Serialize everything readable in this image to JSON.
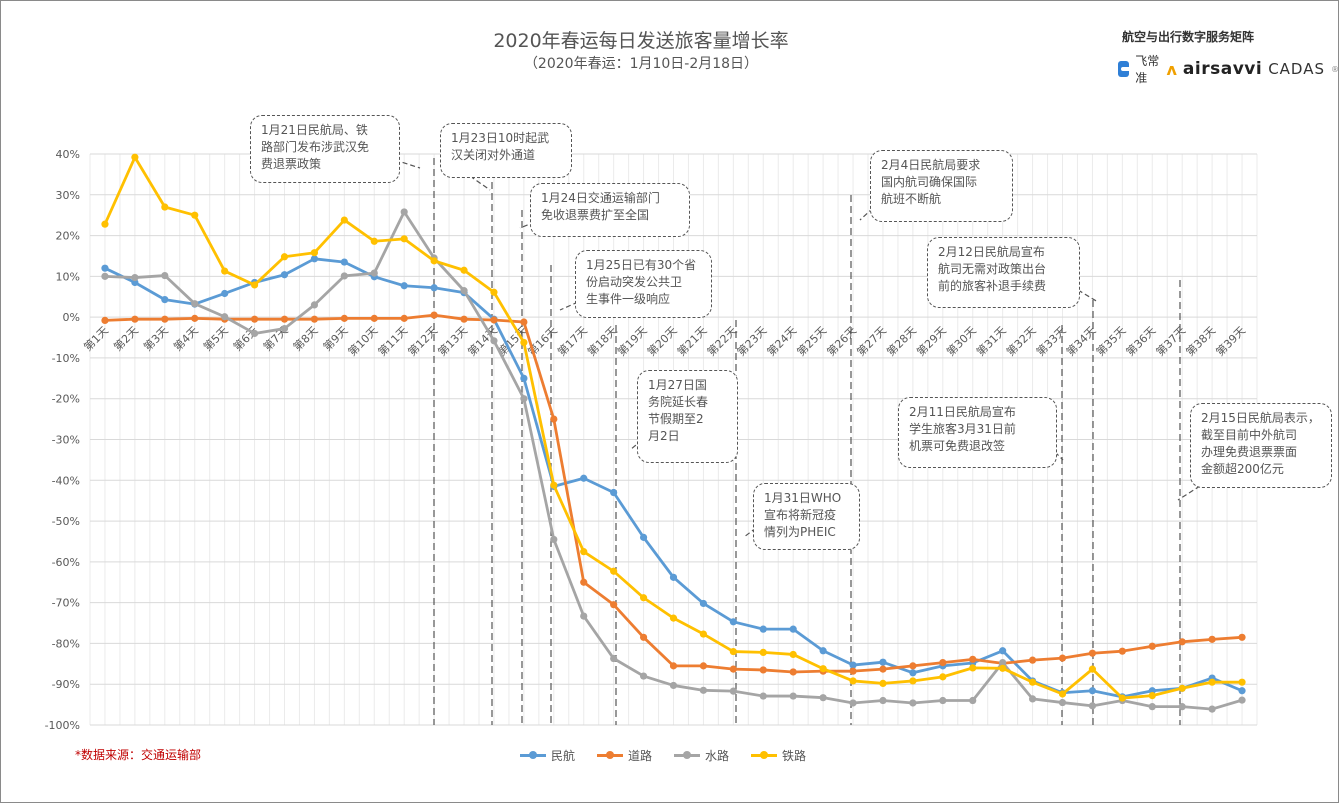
{
  "header": {
    "title": "2020年春运每日发送旅客量增长率",
    "subtitle": "（2020年春运：1月10日-2月18日）"
  },
  "brand": {
    "title": "航空与出行数字服务矩阵",
    "logos": [
      "飞常准",
      "airsavvi",
      "CADAS"
    ],
    "registered": "®"
  },
  "source": "*数据来源：交通运输部",
  "annotations": [
    {
      "lines": [
        "1月21日民航局、铁",
        "路部门发布涉武汉免",
        "费退票政策"
      ]
    },
    {
      "lines": [
        "1月23日10时起武",
        "汉关闭对外通道"
      ]
    },
    {
      "lines": [
        "1月24日交通运输部门",
        "免收退票费扩至全国"
      ]
    },
    {
      "lines": [
        "1月25日已有30个省",
        "份启动突发公共卫",
        "生事件一级响应"
      ]
    },
    {
      "lines": [
        "1月27日国",
        "务院延长春",
        "节假期至2",
        "月2日"
      ]
    },
    {
      "lines": [
        "1月31日WHO",
        "宣布将新冠疫",
        "情列为PHEIC"
      ]
    },
    {
      "lines": [
        "2月4日民航局要求",
        "国内航司确保国际",
        "航班不断航"
      ]
    },
    {
      "lines": [
        "2月12日民航局宣布",
        "航司无需对政策出台",
        "前的旅客补退手续费"
      ]
    },
    {
      "lines": [
        "2月11日民航局宣布",
        "学生旅客3月31日前",
        "机票可免费退改签"
      ]
    },
    {
      "lines": [
        "2月15日民航局表示，",
        "截至目前中外航司",
        "办理免费退票票面",
        "金额超200亿元"
      ]
    }
  ],
  "chart_data": {
    "type": "line",
    "title": "2020年春运每日发送旅客量增长率",
    "subtitle": "（2020年春运：1月10日-2月18日）",
    "xlabel": "",
    "ylabel": "",
    "ylim": [
      -100,
      40
    ],
    "yticks": [
      "40%",
      "30%",
      "20%",
      "10%",
      "0%",
      "-10%",
      "-20%",
      "-30%",
      "-40%",
      "-50%",
      "-60%",
      "-70%",
      "-80%",
      "-90%",
      "-100%"
    ],
    "ytick_values": [
      40,
      30,
      20,
      10,
      0,
      -10,
      -20,
      -30,
      -40,
      -50,
      -60,
      -70,
      -80,
      -90,
      -100
    ],
    "grid": true,
    "legend_position": "bottom",
    "categories": [
      "第1天",
      "第2天",
      "第3天",
      "第4天",
      "第5天",
      "第6天",
      "第7天",
      "第8天",
      "第9天",
      "第10天",
      "第11天",
      "第12天",
      "第13天",
      "第14天",
      "第15天",
      "第16天",
      "第17天",
      "第18天",
      "第19天",
      "第20天",
      "第21天",
      "第22天",
      "第23天",
      "第24天",
      "第25天",
      "第26天",
      "第27天",
      "第28天",
      "第29天",
      "第30天",
      "第31天",
      "第32天",
      "第33天",
      "第34天",
      "第35天",
      "第36天",
      "第37天",
      "第38天",
      "第39天"
    ],
    "series": [
      {
        "name": "民航",
        "color": "#5b9bd5",
        "values": [
          12.0,
          8.5,
          4.3,
          3.2,
          5.8,
          8.5,
          10.4,
          14.3,
          13.5,
          9.9,
          7.7,
          7.2,
          6.0,
          -0.5,
          -15.0,
          -41.5,
          -39.5,
          -43.0,
          -54.0,
          -63.8,
          -70.2,
          -74.7,
          -76.5,
          -76.5,
          -81.8,
          -85.3,
          -84.6,
          -87.2,
          -85.5,
          -84.8,
          -81.8,
          -89.2,
          -92.1,
          -91.6,
          -93.1,
          -91.6,
          -91.0,
          -88.5,
          -91.6
        ]
      },
      {
        "name": "道路",
        "color": "#ed7d31",
        "values": [
          -0.8,
          -0.5,
          -0.5,
          -0.3,
          -0.5,
          -0.5,
          -0.5,
          -0.5,
          -0.3,
          -0.3,
          -0.3,
          0.5,
          -0.5,
          -0.7,
          -1.2,
          -25.0,
          -65.0,
          -70.5,
          -78.5,
          -85.5,
          -85.5,
          -86.3,
          -86.5,
          -87.0,
          -86.8,
          -86.8,
          -86.3,
          -85.5,
          -84.7,
          -83.9,
          -84.9,
          -84.1,
          -83.6,
          -82.4,
          -81.9,
          -80.7,
          -79.6,
          -79.0,
          -78.5
        ]
      },
      {
        "name": "水路",
        "color": "#a5a5a5",
        "values": [
          10.0,
          9.7,
          10.2,
          3.3,
          0.1,
          -4.0,
          -2.8,
          3.0,
          10.1,
          10.8,
          25.8,
          14.5,
          6.5,
          -5.8,
          -20.0,
          -54.5,
          -73.3,
          -83.7,
          -88.0,
          -90.3,
          -91.5,
          -91.7,
          -92.9,
          -92.9,
          -93.3,
          -94.6,
          -94.0,
          -94.6,
          -94.0,
          -94.0,
          -84.7,
          -93.6,
          -94.5,
          -95.3,
          -94.0,
          -95.5,
          -95.5,
          -96.1,
          -93.9
        ]
      },
      {
        "name": "铁路",
        "color": "#ffc000",
        "values": [
          22.8,
          39.2,
          27.0,
          25.0,
          11.3,
          7.9,
          14.8,
          15.8,
          23.8,
          18.6,
          19.2,
          13.8,
          11.5,
          6.1,
          -6.2,
          -41.2,
          -57.5,
          -62.3,
          -68.8,
          -73.8,
          -77.7,
          -82.0,
          -82.2,
          -82.7,
          -86.2,
          -89.2,
          -89.8,
          -89.2,
          -88.2,
          -86.0,
          -86.1,
          -89.5,
          -92.4,
          -86.3,
          -93.4,
          -92.8,
          -91.0,
          -89.5,
          -89.5
        ]
      }
    ]
  }
}
